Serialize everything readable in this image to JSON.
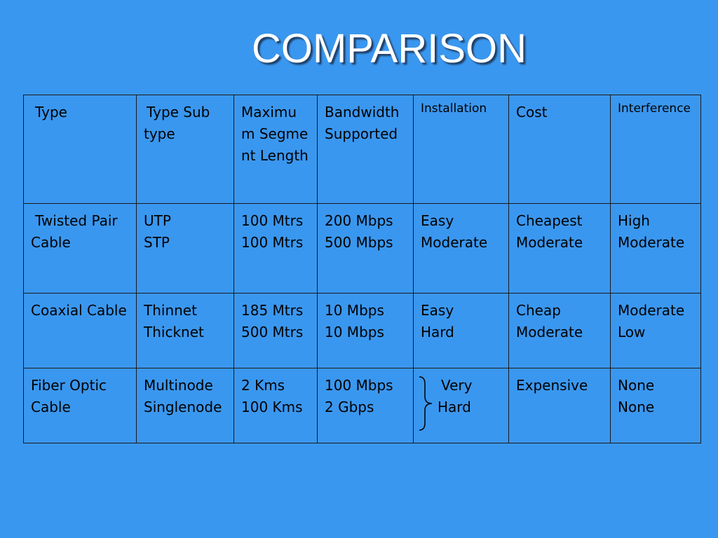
{
  "title": "COMPARISON",
  "headers": [
    {
      "label": "Type",
      "small": false
    },
    {
      "label": "Type Sub type",
      "small": false
    },
    {
      "label": "Maximum Segment Length",
      "small": false
    },
    {
      "label": "Bandwidth Supported",
      "small": false
    },
    {
      "label": "Installation",
      "small": true
    },
    {
      "label": "Cost",
      "small": false
    },
    {
      "label": "Interference",
      "small": true
    }
  ],
  "rows": [
    {
      "type": [
        "Twisted Pair Cable"
      ],
      "subtype": [
        "UTP",
        "STP"
      ],
      "length": [
        "100 Mtrs",
        "100 Mtrs"
      ],
      "bandwidth": [
        "200 Mbps",
        "500 Mbps"
      ],
      "installation": [
        "Easy",
        "Moderate"
      ],
      "cost": [
        "Cheapest",
        "Moderate"
      ],
      "interference": [
        "High",
        "Moderate"
      ]
    },
    {
      "type": [
        "Coaxial Cable"
      ],
      "subtype": [
        "Thinnet",
        "Thicknet"
      ],
      "length": [
        "185 Mtrs",
        "500 Mtrs"
      ],
      "bandwidth": [
        "10 Mbps",
        "10 Mbps"
      ],
      "installation": [
        "Easy",
        "Hard"
      ],
      "cost": [
        "Cheap",
        "Moderate"
      ],
      "interference": [
        "Moderate",
        "Low"
      ]
    },
    {
      "type": [
        "Fiber Optic Cable"
      ],
      "subtype": [
        "Multinode",
        "Singlenode"
      ],
      "length": [
        "2 Kms",
        "100 Kms"
      ],
      "bandwidth": [
        "100 Mbps",
        "2 Gbps"
      ],
      "installation": [
        "Very",
        "Hard"
      ],
      "cost": [
        "Expensive"
      ],
      "interference": [
        "None",
        "None"
      ]
    }
  ]
}
